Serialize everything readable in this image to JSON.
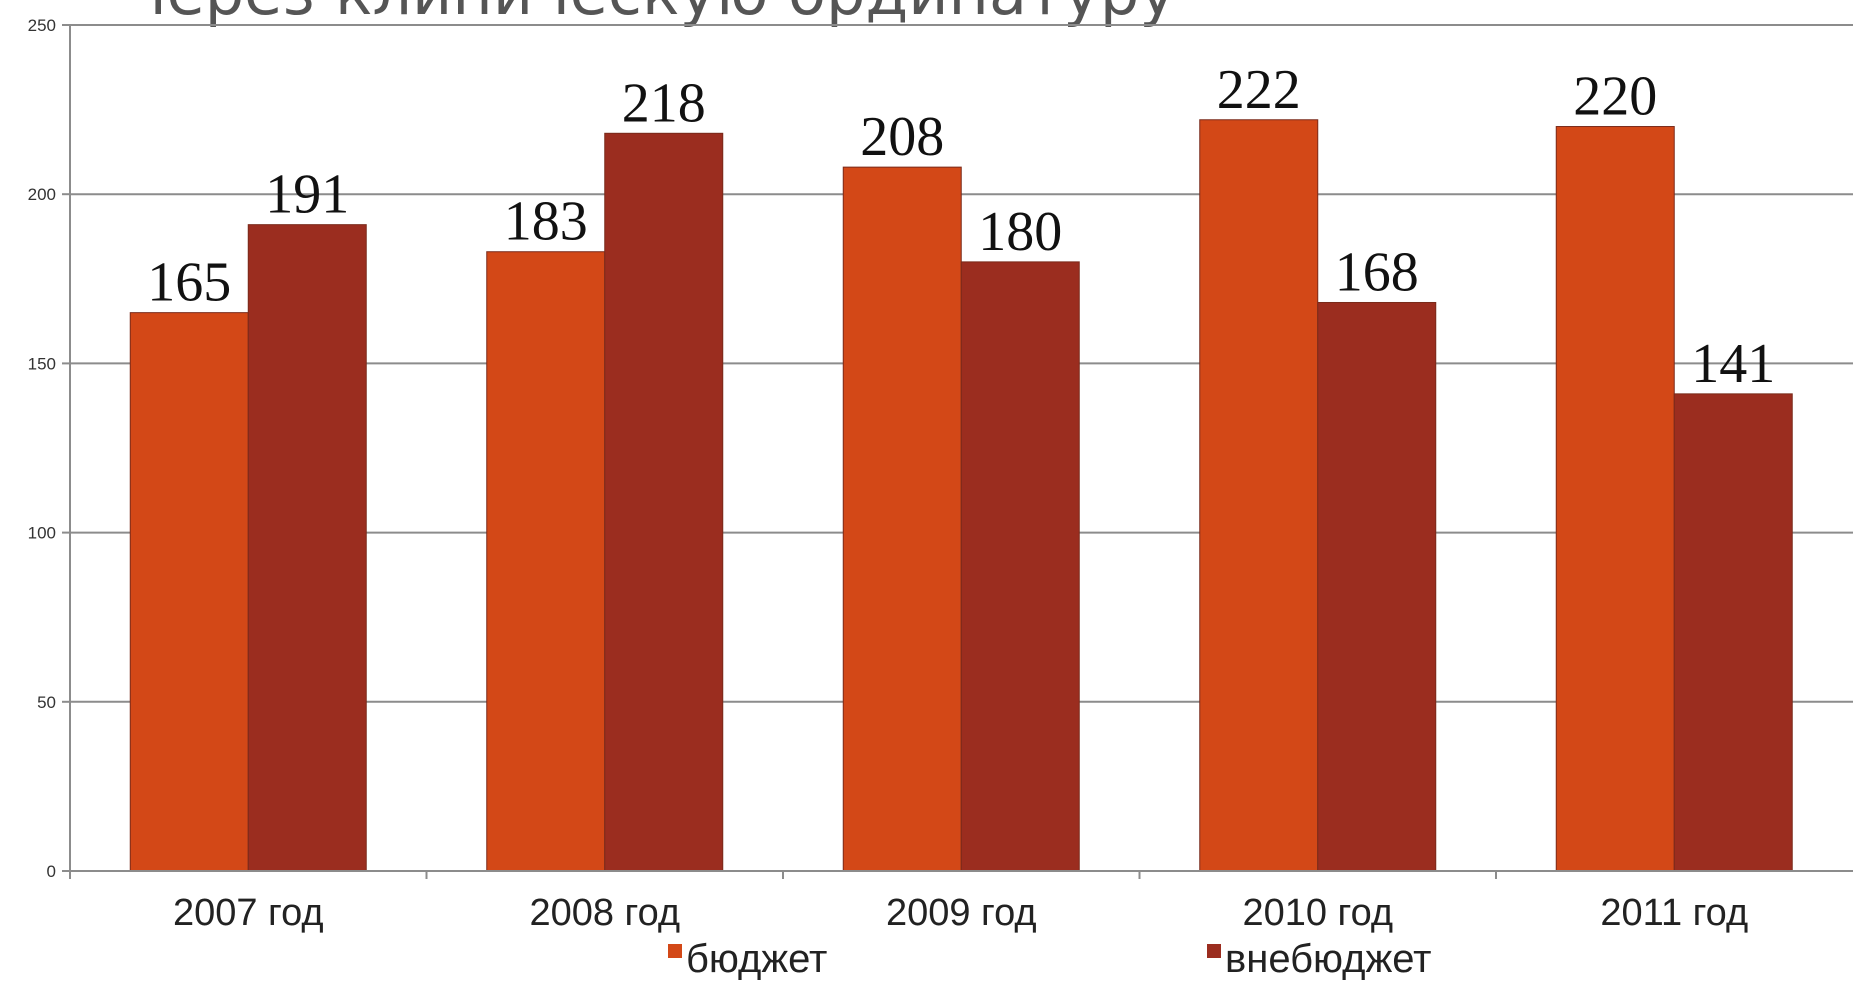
{
  "chart_data": {
    "type": "bar",
    "title": "через клиническую ординатуру",
    "categories": [
      "2007 год",
      "2008 год",
      "2009 год",
      "2010 год",
      "2011 год"
    ],
    "series": [
      {
        "name": "бюджет",
        "values": [
          165,
          183,
          208,
          222,
          220
        ],
        "color": "#D34817"
      },
      {
        "name": "внебюджет",
        "values": [
          191,
          218,
          180,
          168,
          141
        ],
        "color": "#9B2D1F"
      }
    ],
    "ylim": [
      0,
      250
    ],
    "yticks": [
      0,
      50,
      100,
      150,
      200,
      250
    ],
    "grid": true,
    "legend": "bottom",
    "xlabel": "",
    "ylabel": ""
  }
}
